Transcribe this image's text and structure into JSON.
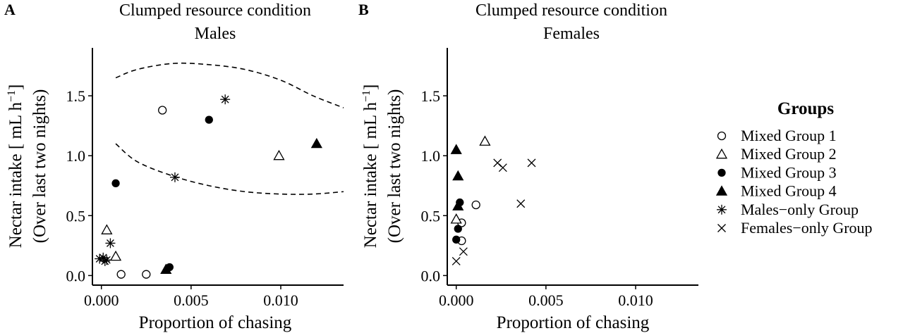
{
  "legend": {
    "title": "Groups",
    "entries": [
      {
        "label": "Mixed Group 1",
        "shape": "open-circle"
      },
      {
        "label": "Mixed Group 2",
        "shape": "open-triangle"
      },
      {
        "label": "Mixed Group 3",
        "shape": "filled-circle"
      },
      {
        "label": "Mixed Group 4",
        "shape": "filled-triangle"
      },
      {
        "label": "Males−only Group",
        "shape": "asterisk"
      },
      {
        "label": "Females−only Group",
        "shape": "cross"
      }
    ]
  },
  "chart_data": [
    {
      "type": "scatter",
      "panel": "A",
      "title": "Clumped resource condition",
      "subtitle": "Males",
      "xlabel": "Proportion of chasing",
      "ylabel_line1": "Nectar intake [ mL h",
      "ylabel_sup": "−1",
      "ylabel_line1_end": "]",
      "ylabel_line2": "(Over last two nights)",
      "xlim": [
        -0.0005,
        0.0135
      ],
      "ylim": [
        -0.08,
        1.9
      ],
      "xticks": [
        0.0,
        0.005,
        0.01
      ],
      "xtick_labels": [
        "0.000",
        "0.005",
        "0.010"
      ],
      "yticks": [
        0.0,
        0.5,
        1.0,
        1.5
      ],
      "ytick_labels": [
        "0.0",
        "0.5",
        "1.0",
        "1.5"
      ],
      "series": [
        {
          "legend_index": 0,
          "points": [
            [
              0.0034,
              1.38
            ],
            [
              0.0011,
              0.01
            ],
            [
              0.0025,
              0.01
            ]
          ]
        },
        {
          "legend_index": 1,
          "points": [
            [
              0.0099,
              1.0
            ],
            [
              0.0003,
              0.38
            ],
            [
              0.0008,
              0.16
            ]
          ]
        },
        {
          "legend_index": 2,
          "points": [
            [
              0.006,
              1.3
            ],
            [
              0.0008,
              0.77
            ],
            [
              0.0038,
              0.07
            ]
          ]
        },
        {
          "legend_index": 3,
          "points": [
            [
              0.012,
              1.1
            ],
            [
              0.0036,
              0.05
            ]
          ]
        },
        {
          "legend_index": 4,
          "points": [
            [
              0.0069,
              1.47
            ],
            [
              0.0041,
              0.82
            ],
            [
              0.0005,
              0.27
            ],
            [
              0.0001,
              0.15
            ],
            [
              0.0003,
              0.13
            ],
            [
              0.0002,
              0.12
            ],
            [
              -0.0001,
              0.14
            ]
          ]
        }
      ],
      "curves": [
        {
          "style": "dashed",
          "points": [
            [
              0.0008,
              1.65
            ],
            [
              0.002,
              1.72
            ],
            [
              0.004,
              1.77
            ],
            [
              0.006,
              1.76
            ],
            [
              0.008,
              1.72
            ],
            [
              0.01,
              1.63
            ],
            [
              0.0118,
              1.5
            ],
            [
              0.0135,
              1.4
            ]
          ]
        },
        {
          "style": "dashed",
          "points": [
            [
              0.0008,
              1.1
            ],
            [
              0.002,
              0.95
            ],
            [
              0.004,
              0.83
            ],
            [
              0.006,
              0.75
            ],
            [
              0.008,
              0.7
            ],
            [
              0.01,
              0.68
            ],
            [
              0.0118,
              0.68
            ],
            [
              0.0135,
              0.7
            ]
          ]
        }
      ]
    },
    {
      "type": "scatter",
      "panel": "B",
      "title": "Clumped resource condition",
      "subtitle": "Females",
      "xlabel": "Proportion of chasing",
      "ylabel_line1": "Nectar intake [ mL h",
      "ylabel_sup": "−1",
      "ylabel_line1_end": "]",
      "ylabel_line2": "(Over last two nights)",
      "xlim": [
        -0.0005,
        0.0135
      ],
      "ylim": [
        -0.08,
        1.9
      ],
      "xticks": [
        0.0,
        0.005,
        0.01
      ],
      "xtick_labels": [
        "0.000",
        "0.005",
        "0.010"
      ],
      "yticks": [
        0.0,
        0.5,
        1.0,
        1.5
      ],
      "ytick_labels": [
        "0.0",
        "0.5",
        "1.0",
        "1.5"
      ],
      "series": [
        {
          "legend_index": 0,
          "points": [
            [
              0.0011,
              0.59
            ],
            [
              0.0003,
              0.44
            ],
            [
              0.0003,
              0.29
            ]
          ]
        },
        {
          "legend_index": 1,
          "points": [
            [
              0.0016,
              1.12
            ],
            [
              0.0,
              0.47
            ]
          ]
        },
        {
          "legend_index": 2,
          "points": [
            [
              0.0002,
              0.61
            ],
            [
              0.0001,
              0.39
            ],
            [
              0.0,
              0.3
            ]
          ]
        },
        {
          "legend_index": 3,
          "points": [
            [
              0.0,
              1.05
            ],
            [
              0.0001,
              0.83
            ],
            [
              0.0001,
              0.58
            ]
          ]
        },
        {
          "legend_index": 5,
          "points": [
            [
              0.0023,
              0.94
            ],
            [
              0.0026,
              0.9
            ],
            [
              0.0042,
              0.94
            ],
            [
              0.0036,
              0.6
            ],
            [
              0.0004,
              0.2
            ],
            [
              0.0,
              0.12
            ]
          ]
        }
      ]
    }
  ]
}
